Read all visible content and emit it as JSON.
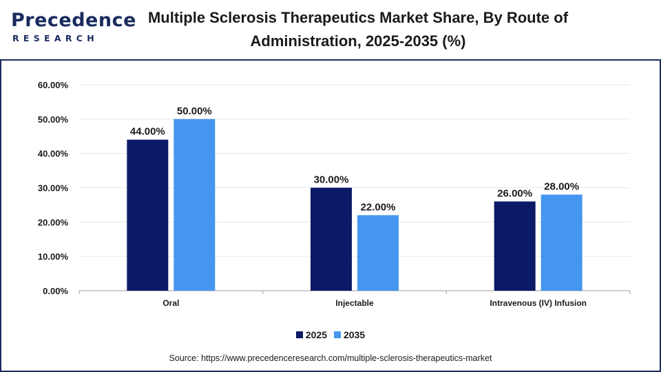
{
  "brand": {
    "name": "Precedence",
    "sub": "RESEARCH"
  },
  "title": "Multiple Sclerosis Therapeutics Market Share, By Route of Administration, 2025-2035 (%)",
  "source": "Source: https://www.precedenceresearch.com/multiple-sclerosis-therapeutics-market",
  "colors": {
    "s2025": "#0b1a66",
    "s2035": "#4596ee",
    "brand": "#1a2b5e"
  },
  "chart_data": {
    "type": "bar",
    "title": "Multiple Sclerosis Therapeutics Market Share, By Route of Administration, 2025-2035 (%)",
    "categories": [
      "Oral",
      "Injectable",
      "Intravenous (IV) Infusion"
    ],
    "series": [
      {
        "name": "2025",
        "values": [
          44.0,
          30.0,
          26.0
        ],
        "labels": [
          "44.00%",
          "30.00%",
          "26.00%"
        ]
      },
      {
        "name": "2035",
        "values": [
          50.0,
          22.0,
          28.0
        ],
        "labels": [
          "50.00%",
          "22.00%",
          "28.00%"
        ]
      }
    ],
    "yticks": [
      "0.00%",
      "10.00%",
      "20.00%",
      "30.00%",
      "40.00%",
      "50.00%",
      "60.00%"
    ],
    "ylim": [
      0,
      60
    ],
    "grid": true,
    "legend": "bottom"
  }
}
